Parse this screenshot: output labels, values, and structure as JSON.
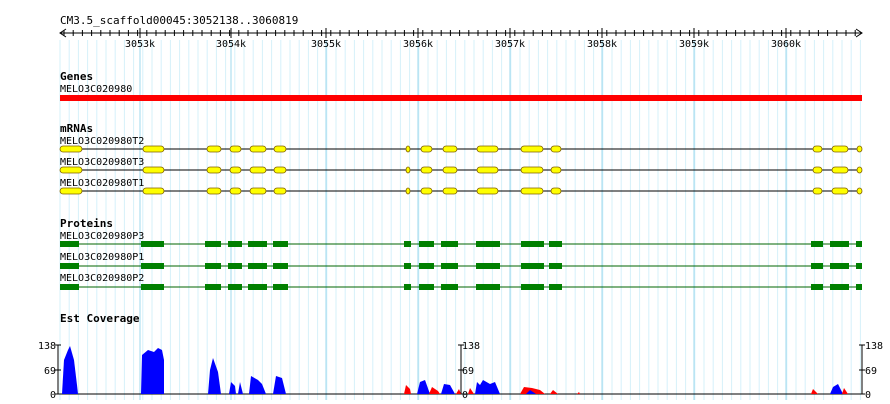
{
  "location": "CM3.5_scaffold00045:3052138..3060819",
  "ruler": {
    "ticks": [
      "3053k",
      "3054k",
      "3055k",
      "3056k",
      "3057k",
      "3058k",
      "3059k",
      "3060k"
    ]
  },
  "tracks": {
    "genes": {
      "title": "Genes",
      "features": [
        {
          "label": "MELO3C020980",
          "color": "#ff0000"
        }
      ]
    },
    "mrnas": {
      "title": "mRNAs",
      "features": [
        {
          "label": "MELO3C020980T2",
          "color": "#ffff00"
        },
        {
          "label": "MELO3C020980T3",
          "color": "#ffff00"
        },
        {
          "label": "MELO3C020980T1",
          "color": "#ffff00"
        }
      ]
    },
    "proteins": {
      "title": "Proteins",
      "features": [
        {
          "label": "MELO3C020980P3",
          "color": "#008000"
        },
        {
          "label": "MELO3C020980P1",
          "color": "#008000"
        },
        {
          "label": "MELO3C020980P2",
          "color": "#008000"
        }
      ]
    },
    "est": {
      "title": "Est Coverage",
      "axis_labels": [
        "138",
        "69",
        "0"
      ],
      "colors": {
        "forward": "#0000ff",
        "reverse": "#ff0000"
      }
    }
  },
  "colors": {
    "grid_major": "#9fd9ee",
    "grid_minor": "#d6f1fa"
  }
}
